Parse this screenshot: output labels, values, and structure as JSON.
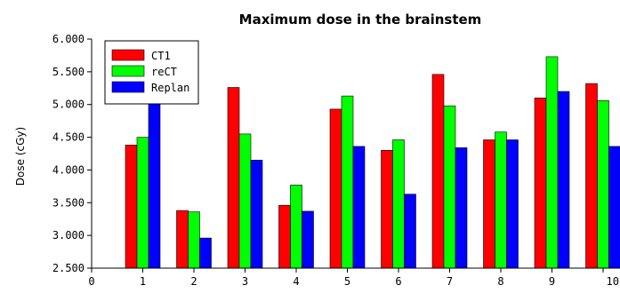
{
  "chart_data": {
    "type": "bar",
    "title": "Maximum dose in the brainstem",
    "xlabel": "",
    "ylabel": "Dose (cGy)",
    "x_ticks": [
      "0",
      "1",
      "2",
      "3",
      "4",
      "5",
      "6",
      "7",
      "8",
      "9",
      "10"
    ],
    "categories": [
      "1",
      "2",
      "3",
      "4",
      "5",
      "6",
      "7",
      "8",
      "9",
      "10"
    ],
    "y_ticks": [
      "2.500",
      "3.000",
      "3.500",
      "4.000",
      "4.500",
      "5.000",
      "5.500",
      "6.000"
    ],
    "xlim": [
      0,
      10
    ],
    "ylim": [
      2500,
      6000
    ],
    "grid": false,
    "legend_position": "top-left",
    "series": [
      {
        "name": "CT1",
        "color": "#ff0000",
        "values": [
          4380,
          3380,
          5260,
          3460,
          4930,
          4300,
          5460,
          4460,
          5100,
          5320
        ]
      },
      {
        "name": "reCT",
        "color": "#00ff00",
        "values": [
          4500,
          3360,
          4550,
          3770,
          5130,
          4460,
          4980,
          4580,
          5730,
          5060
        ]
      },
      {
        "name": "Replan",
        "color": "#0000ff",
        "values": [
          5010,
          2960,
          4150,
          3370,
          4360,
          3630,
          4340,
          4460,
          5200,
          4360
        ]
      }
    ]
  }
}
